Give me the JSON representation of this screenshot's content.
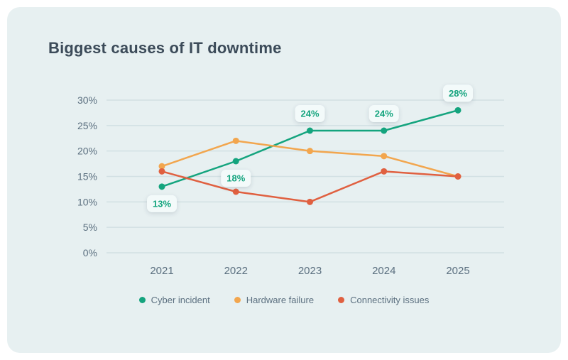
{
  "chart_data": {
    "type": "line",
    "title": "Biggest causes of IT downtime",
    "categories": [
      "2021",
      "2022",
      "2023",
      "2024",
      "2025"
    ],
    "series": [
      {
        "name": "Cyber incident",
        "color": "#14a47e",
        "values": [
          13,
          18,
          24,
          24,
          28
        ],
        "point_labels": [
          "13%",
          "18%",
          "24%",
          "24%",
          "28%"
        ],
        "label_positions": [
          "below",
          "below",
          "above",
          "above",
          "above"
        ]
      },
      {
        "name": "Hardware failure",
        "color": "#f2a64e",
        "values": [
          17,
          22,
          20,
          19,
          15
        ]
      },
      {
        "name": "Connectivity issues",
        "color": "#e06040",
        "values": [
          16,
          12,
          10,
          16,
          15
        ]
      }
    ],
    "xlabel": "",
    "ylabel": "",
    "ylim": [
      0,
      30
    ],
    "yticks": [
      0,
      5,
      10,
      15,
      20,
      25,
      30
    ],
    "ytick_format": "{v}%",
    "grid": "horizontal",
    "legend_position": "bottom"
  },
  "colors": {
    "page_bg": "#ffffff",
    "panel_bg": "#e7f0f1",
    "title_text": "#3c4b59",
    "axis_text": "#5c7080",
    "gridline": "#d2e0e3",
    "badge_bg": "#f3fafa"
  }
}
